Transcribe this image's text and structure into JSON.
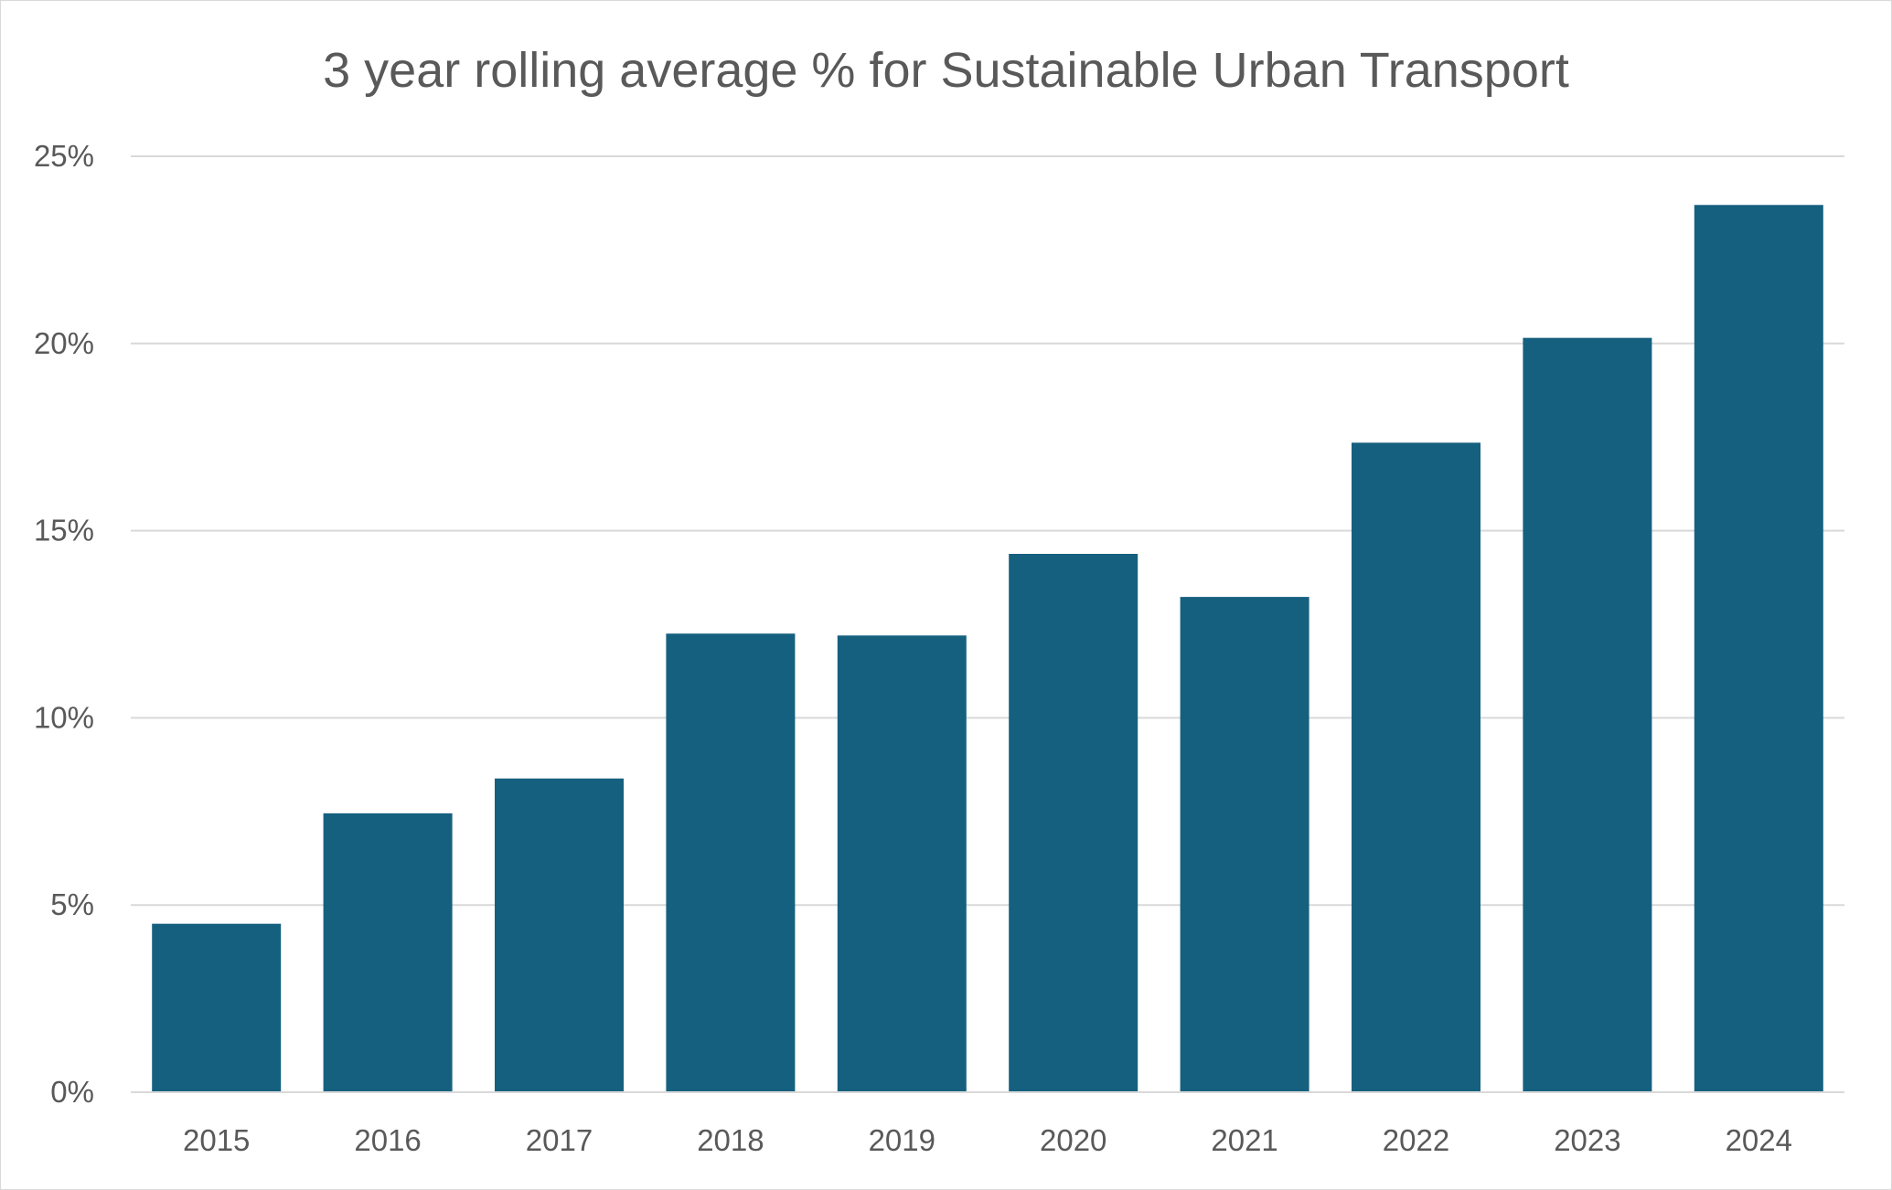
{
  "chart_data": {
    "type": "bar",
    "title": "3 year rolling average % for Sustainable Urban Transport",
    "xlabel": "",
    "ylabel": "",
    "categories": [
      "2015",
      "2016",
      "2017",
      "2018",
      "2019",
      "2020",
      "2021",
      "2022",
      "2023",
      "2024"
    ],
    "values": [
      4.5,
      7.45,
      8.38,
      12.25,
      12.2,
      14.38,
      13.23,
      17.35,
      20.15,
      23.7
    ],
    "ylim": [
      0,
      25
    ],
    "yticks": [
      0,
      5,
      10,
      15,
      20,
      25
    ],
    "ytick_labels": [
      "0%",
      "5%",
      "10%",
      "15%",
      "20%",
      "25%"
    ],
    "grid": true,
    "legend": "none",
    "colors": {
      "bar": "#16607f",
      "grid": "#d9d9d9",
      "text": "#595959"
    }
  }
}
